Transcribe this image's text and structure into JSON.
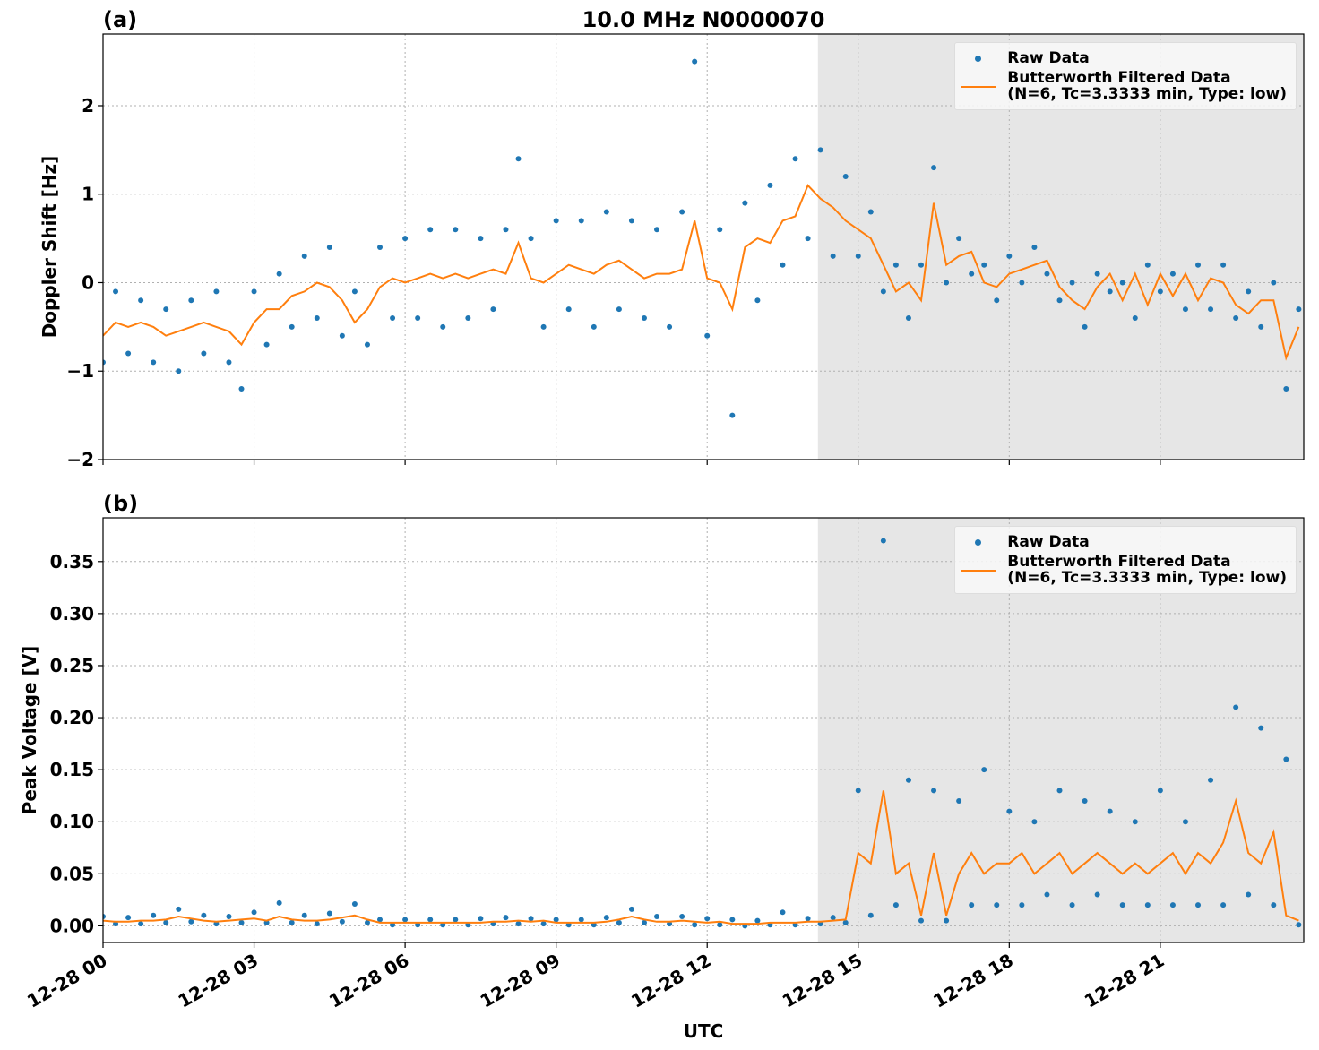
{
  "chart_data": [
    {
      "type": "line",
      "title": "10.0 MHz N0000070",
      "panel_label": "(a)",
      "ylabel": "Doppler Shift [Hz]",
      "xlim": [
        0,
        23.85
      ],
      "ylim": [
        -2,
        2.81
      ],
      "xticks": [
        0,
        3,
        6,
        9,
        12,
        15,
        18,
        21
      ],
      "yticks": [
        {
          "value": -2,
          "label": "−2"
        },
        {
          "value": -1,
          "label": "−1"
        },
        0,
        1,
        2
      ],
      "grid": true,
      "shaded_span": [
        14.2,
        23.85
      ],
      "legend": "upper right",
      "x": [
        0,
        0.25,
        0.5,
        0.75,
        1,
        1.25,
        1.5,
        1.75,
        2,
        2.25,
        2.5,
        2.75,
        3,
        3.25,
        3.5,
        3.75,
        4,
        4.25,
        4.5,
        4.75,
        5,
        5.25,
        5.5,
        5.75,
        6,
        6.25,
        6.5,
        6.75,
        7,
        7.25,
        7.5,
        7.75,
        8,
        8.25,
        8.5,
        8.75,
        9,
        9.25,
        9.5,
        9.75,
        10,
        10.25,
        10.5,
        10.75,
        11,
        11.25,
        11.5,
        11.75,
        12,
        12.25,
        12.5,
        12.75,
        13,
        13.25,
        13.5,
        13.75,
        14,
        14.25,
        14.5,
        14.75,
        15,
        15.25,
        15.5,
        15.75,
        16,
        16.25,
        16.5,
        16.75,
        17,
        17.25,
        17.5,
        17.75,
        18,
        18.25,
        18.5,
        18.75,
        19,
        19.25,
        19.5,
        19.75,
        20,
        20.25,
        20.5,
        20.75,
        21,
        21.25,
        21.5,
        21.75,
        22,
        22.25,
        22.5,
        22.75,
        23,
        23.25,
        23.5,
        23.75
      ],
      "series": [
        {
          "name": "Raw Data",
          "style": "markers",
          "color": "#1f77b4",
          "values": [
            -0.9,
            -0.1,
            -0.8,
            -0.2,
            -0.9,
            -0.3,
            -1.0,
            -0.2,
            -0.8,
            -0.1,
            -0.9,
            -1.2,
            -0.1,
            -0.7,
            0.1,
            -0.5,
            0.3,
            -0.4,
            0.4,
            -0.6,
            -0.1,
            -0.7,
            0.4,
            -0.4,
            0.5,
            -0.4,
            0.6,
            -0.5,
            0.6,
            -0.4,
            0.5,
            -0.3,
            0.6,
            1.4,
            0.5,
            -0.5,
            0.7,
            -0.3,
            0.7,
            -0.5,
            0.8,
            -0.3,
            0.7,
            -0.4,
            0.6,
            -0.5,
            0.8,
            2.5,
            -0.6,
            0.6,
            -1.5,
            0.9,
            -0.2,
            1.1,
            0.2,
            1.4,
            0.5,
            1.5,
            0.3,
            1.2,
            0.3,
            0.8,
            -0.1,
            0.2,
            -0.4,
            0.2,
            1.3,
            0.0,
            0.5,
            0.1,
            0.2,
            -0.2,
            0.3,
            0.0,
            0.4,
            0.1,
            -0.2,
            0.0,
            -0.5,
            0.1,
            -0.1,
            0.0,
            -0.4,
            0.2,
            -0.1,
            0.1,
            -0.3,
            0.2,
            -0.3,
            0.2,
            -0.4,
            -0.1,
            -0.5,
            0.0,
            -1.2,
            -0.3
          ]
        },
        {
          "name": "Butterworth Filtered Data\n(N=6, Tc=3.3333 min, Type: low)",
          "style": "line",
          "color": "#ff7f0e",
          "values": [
            -0.6,
            -0.45,
            -0.5,
            -0.45,
            -0.5,
            -0.6,
            -0.55,
            -0.5,
            -0.45,
            -0.5,
            -0.55,
            -0.7,
            -0.45,
            -0.3,
            -0.3,
            -0.15,
            -0.1,
            0.0,
            -0.05,
            -0.2,
            -0.45,
            -0.3,
            -0.05,
            0.05,
            0.0,
            0.05,
            0.1,
            0.05,
            0.1,
            0.05,
            0.1,
            0.15,
            0.1,
            0.45,
            0.05,
            0.0,
            0.1,
            0.2,
            0.15,
            0.1,
            0.2,
            0.25,
            0.15,
            0.05,
            0.1,
            0.1,
            0.15,
            0.7,
            0.05,
            0.0,
            -0.3,
            0.4,
            0.5,
            0.45,
            0.7,
            0.75,
            1.1,
            0.95,
            0.85,
            0.7,
            0.6,
            0.5,
            0.2,
            -0.1,
            0.0,
            -0.2,
            0.9,
            0.2,
            0.3,
            0.35,
            0.0,
            -0.05,
            0.1,
            0.15,
            0.2,
            0.25,
            -0.05,
            -0.2,
            -0.3,
            -0.05,
            0.1,
            -0.2,
            0.1,
            -0.25,
            0.1,
            -0.15,
            0.1,
            -0.2,
            0.05,
            0.0,
            -0.25,
            -0.35,
            -0.2,
            -0.2,
            -0.85,
            -0.5
          ]
        }
      ]
    },
    {
      "type": "line",
      "panel_label": "(b)",
      "ylabel": "Peak Voltage [V]",
      "xlabel": "UTC",
      "xlim": [
        0,
        23.85
      ],
      "ylim": [
        -0.016,
        0.392
      ],
      "xticks": [
        {
          "value": 0,
          "label": "12-28 00"
        },
        {
          "value": 3,
          "label": "12-28 03"
        },
        {
          "value": 6,
          "label": "12-28 06"
        },
        {
          "value": 9,
          "label": "12-28 09"
        },
        {
          "value": 12,
          "label": "12-28 12"
        },
        {
          "value": 15,
          "label": "12-28 15"
        },
        {
          "value": 18,
          "label": "12-28 18"
        },
        {
          "value": 21,
          "label": "12-28 21"
        }
      ],
      "yticks": [
        {
          "value": 0,
          "label": "0.00"
        },
        {
          "value": 0.05,
          "label": "0.05"
        },
        {
          "value": 0.1,
          "label": "0.10"
        },
        {
          "value": 0.15,
          "label": "0.15"
        },
        {
          "value": 0.2,
          "label": "0.20"
        },
        {
          "value": 0.25,
          "label": "0.25"
        },
        {
          "value": 0.3,
          "label": "0.30"
        },
        {
          "value": 0.35,
          "label": "0.35"
        }
      ],
      "grid": true,
      "shaded_span": [
        14.2,
        23.85
      ],
      "legend": "upper right",
      "x": [
        0,
        0.25,
        0.5,
        0.75,
        1,
        1.25,
        1.5,
        1.75,
        2,
        2.25,
        2.5,
        2.75,
        3,
        3.25,
        3.5,
        3.75,
        4,
        4.25,
        4.5,
        4.75,
        5,
        5.25,
        5.5,
        5.75,
        6,
        6.25,
        6.5,
        6.75,
        7,
        7.25,
        7.5,
        7.75,
        8,
        8.25,
        8.5,
        8.75,
        9,
        9.25,
        9.5,
        9.75,
        10,
        10.25,
        10.5,
        10.75,
        11,
        11.25,
        11.5,
        11.75,
        12,
        12.25,
        12.5,
        12.75,
        13,
        13.25,
        13.5,
        13.75,
        14,
        14.25,
        14.5,
        14.75,
        15,
        15.25,
        15.5,
        15.75,
        16,
        16.25,
        16.5,
        16.75,
        17,
        17.25,
        17.5,
        17.75,
        18,
        18.25,
        18.5,
        18.75,
        19,
        19.25,
        19.5,
        19.75,
        20,
        20.25,
        20.5,
        20.75,
        21,
        21.25,
        21.5,
        21.75,
        22,
        22.25,
        22.5,
        22.75,
        23,
        23.25,
        23.5,
        23.75
      ],
      "series": [
        {
          "name": "Raw Data",
          "style": "markers",
          "color": "#1f77b4",
          "values": [
            0.009,
            0.002,
            0.008,
            0.002,
            0.01,
            0.003,
            0.016,
            0.004,
            0.01,
            0.002,
            0.009,
            0.003,
            0.013,
            0.003,
            0.022,
            0.003,
            0.01,
            0.002,
            0.012,
            0.004,
            0.021,
            0.003,
            0.006,
            0.001,
            0.006,
            0.001,
            0.006,
            0.001,
            0.006,
            0.001,
            0.007,
            0.002,
            0.008,
            0.002,
            0.007,
            0.002,
            0.006,
            0.001,
            0.006,
            0.001,
            0.008,
            0.003,
            0.016,
            0.003,
            0.009,
            0.002,
            0.009,
            0.001,
            0.007,
            0.001,
            0.006,
            0.0,
            0.005,
            0.001,
            0.013,
            0.001,
            0.007,
            0.002,
            0.008,
            0.003,
            0.13,
            0.01,
            0.37,
            0.02,
            0.14,
            0.005,
            0.13,
            0.005,
            0.12,
            0.02,
            0.15,
            0.02,
            0.11,
            0.02,
            0.1,
            0.03,
            0.13,
            0.02,
            0.12,
            0.03,
            0.11,
            0.02,
            0.1,
            0.02,
            0.13,
            0.02,
            0.1,
            0.02,
            0.14,
            0.02,
            0.21,
            0.03,
            0.19,
            0.02,
            0.16,
            0.001
          ]
        },
        {
          "name": "Butterworth Filtered Data\n(N=6, Tc=3.3333 min, Type: low)",
          "style": "line",
          "color": "#ff7f0e",
          "values": [
            0.005,
            0.004,
            0.004,
            0.005,
            0.005,
            0.006,
            0.009,
            0.007,
            0.005,
            0.004,
            0.005,
            0.006,
            0.007,
            0.005,
            0.009,
            0.006,
            0.005,
            0.005,
            0.006,
            0.008,
            0.01,
            0.006,
            0.003,
            0.003,
            0.003,
            0.003,
            0.003,
            0.003,
            0.003,
            0.003,
            0.003,
            0.004,
            0.004,
            0.005,
            0.004,
            0.005,
            0.003,
            0.003,
            0.003,
            0.003,
            0.004,
            0.006,
            0.009,
            0.006,
            0.004,
            0.004,
            0.005,
            0.004,
            0.003,
            0.004,
            0.002,
            0.002,
            0.002,
            0.003,
            0.003,
            0.003,
            0.004,
            0.004,
            0.005,
            0.006,
            0.07,
            0.06,
            0.13,
            0.05,
            0.06,
            0.01,
            0.07,
            0.01,
            0.05,
            0.07,
            0.05,
            0.06,
            0.06,
            0.07,
            0.05,
            0.06,
            0.07,
            0.05,
            0.06,
            0.07,
            0.06,
            0.05,
            0.06,
            0.05,
            0.06,
            0.07,
            0.05,
            0.07,
            0.06,
            0.08,
            0.12,
            0.07,
            0.06,
            0.09,
            0.01,
            0.005
          ]
        }
      ]
    }
  ]
}
